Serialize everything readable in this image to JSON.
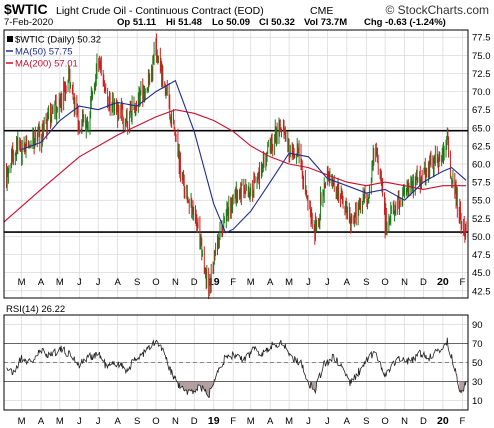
{
  "header": {
    "symbol": "$WTIC",
    "name": "Light Crude Oil - Continuous Contract (EOD)",
    "exchange": "CME",
    "brand": "© StockCharts.com",
    "date": "7-Feb-2020",
    "ohlc": [
      "Op 51.11",
      "Hi 51.48",
      "Lo 50.09",
      "Cl 50.32",
      "Vol 73.7M",
      "Chg -0.63 (-1.24%)"
    ]
  },
  "colors": {
    "price_up": "#1a7a1a",
    "price_down": "#cc1f1f",
    "ma50": "#1f2d8f",
    "ma200": "#c8102e",
    "rsi_line": "#222222",
    "rsi_fill": "#a08a8a",
    "grid": "#d8d8d8",
    "level_lines": "#000000"
  },
  "chart_data": [
    {
      "type": "line",
      "title": "$WTIC (Daily) 50.32",
      "legend_position": "top-left",
      "grid": true,
      "ylim": [
        41.5,
        78.5
      ],
      "y_axis_side": "right",
      "y_ticks": [
        42.5,
        45.0,
        47.5,
        50.0,
        52.5,
        55.0,
        57.5,
        60.0,
        62.5,
        65.0,
        67.5,
        70.0,
        72.5,
        75.0,
        77.5
      ],
      "y_tick_labels": [
        "42.5",
        "45.0",
        "47.5",
        "50.0",
        "52.5",
        "55.0",
        "57.5",
        "60.0",
        "62.5",
        "65.0",
        "67.5",
        "70.0",
        "72.5",
        "75.0",
        "77.5"
      ],
      "x_range": [
        "2018-02-01",
        "2020-02-10"
      ],
      "x_ticks": [
        "2018-03-01",
        "2018-04-01",
        "2018-05-01",
        "2018-06-01",
        "2018-07-01",
        "2018-08-01",
        "2018-09-01",
        "2018-10-01",
        "2018-11-01",
        "2018-12-01",
        "2019-01-01",
        "2019-02-01",
        "2019-03-01",
        "2019-04-01",
        "2019-05-01",
        "2019-06-01",
        "2019-07-01",
        "2019-08-01",
        "2019-09-01",
        "2019-10-01",
        "2019-11-01",
        "2019-12-01",
        "2020-01-01",
        "2020-02-01"
      ],
      "x_tick_labels": [
        "M",
        "A",
        "M",
        "J",
        "J",
        "A",
        "S",
        "O",
        "N",
        "D",
        "19",
        "F",
        "M",
        "A",
        "M",
        "J",
        "J",
        "A",
        "S",
        "O",
        "N",
        "D",
        "20",
        "F"
      ],
      "horizontal_lines": [
        64.6,
        50.6
      ],
      "series": [
        {
          "name": "$WTIC (Daily) 50.32",
          "style": "price-bars",
          "x": [
            "2018-02-05",
            "2018-02-19",
            "2018-03-05",
            "2018-03-19",
            "2018-04-02",
            "2018-04-16",
            "2018-05-01",
            "2018-05-15",
            "2018-06-01",
            "2018-06-15",
            "2018-07-02",
            "2018-07-16",
            "2018-08-01",
            "2018-08-15",
            "2018-09-03",
            "2018-09-17",
            "2018-10-01",
            "2018-10-15",
            "2018-11-01",
            "2018-11-15",
            "2018-12-03",
            "2018-12-17",
            "2018-12-24",
            "2019-01-02",
            "2019-01-15",
            "2019-02-01",
            "2019-02-15",
            "2019-03-01",
            "2019-03-15",
            "2019-04-01",
            "2019-04-22",
            "2019-05-01",
            "2019-05-15",
            "2019-06-03",
            "2019-06-12",
            "2019-07-01",
            "2019-07-15",
            "2019-08-01",
            "2019-08-07",
            "2019-09-03",
            "2019-09-16",
            "2019-10-01",
            "2019-10-15",
            "2019-11-01",
            "2019-11-15",
            "2019-12-02",
            "2019-12-16",
            "2020-01-02",
            "2020-01-08",
            "2020-01-15",
            "2020-02-01",
            "2020-02-07"
          ],
          "values": [
            59.0,
            62.0,
            61.5,
            63.5,
            64.0,
            67.0,
            68.5,
            71.5,
            65.5,
            66.0,
            74.0,
            68.5,
            67.5,
            65.5,
            69.0,
            70.5,
            75.5,
            71.0,
            63.5,
            56.5,
            52.5,
            46.5,
            43.0,
            47.5,
            52.0,
            55.0,
            56.5,
            56.5,
            58.5,
            62.5,
            66.0,
            62.0,
            62.0,
            53.0,
            51.5,
            58.5,
            56.5,
            54.0,
            51.5,
            55.5,
            62.5,
            52.5,
            53.5,
            56.5,
            57.5,
            58.5,
            60.5,
            61.5,
            63.5,
            58.0,
            51.5,
            50.3
          ]
        },
        {
          "name": "MA(50) 57.75",
          "x": [
            "2018-03-01",
            "2018-04-01",
            "2018-05-01",
            "2018-06-01",
            "2018-07-01",
            "2018-08-01",
            "2018-09-01",
            "2018-10-01",
            "2018-11-01",
            "2018-12-01",
            "2019-01-01",
            "2019-01-20",
            "2019-02-01",
            "2019-03-01",
            "2019-04-01",
            "2019-05-01",
            "2019-06-01",
            "2019-07-01",
            "2019-08-01",
            "2019-09-01",
            "2019-10-01",
            "2019-11-01",
            "2019-12-01",
            "2020-01-01",
            "2020-01-15",
            "2020-02-07"
          ],
          "values": [
            62.0,
            63.0,
            66.0,
            68.0,
            67.5,
            68.5,
            68.0,
            70.0,
            71.5,
            64.5,
            54.5,
            50.5,
            51.0,
            53.5,
            57.5,
            61.5,
            61.0,
            58.0,
            57.0,
            56.0,
            56.5,
            55.0,
            57.5,
            59.0,
            59.5,
            57.75
          ]
        },
        {
          "name": "MA(200) 57.01",
          "x": [
            "2018-02-01",
            "2018-04-01",
            "2018-06-01",
            "2018-08-01",
            "2018-10-01",
            "2018-11-01",
            "2018-12-01",
            "2019-01-01",
            "2019-02-01",
            "2019-03-01",
            "2019-04-01",
            "2019-05-01",
            "2019-06-01",
            "2019-07-01",
            "2019-08-01",
            "2019-09-01",
            "2019-10-01",
            "2019-11-01",
            "2019-12-01",
            "2020-01-01",
            "2020-02-07"
          ],
          "values": [
            52.0,
            56.5,
            61.0,
            64.0,
            66.5,
            67.5,
            67.0,
            66.0,
            64.5,
            62.5,
            61.0,
            60.0,
            59.5,
            58.5,
            57.5,
            57.0,
            57.5,
            57.0,
            56.5,
            57.0,
            57.01
          ]
        }
      ]
    },
    {
      "type": "line",
      "title": "RSI(14) 26.22",
      "grid": true,
      "ylim": [
        0,
        100
      ],
      "y_axis_side": "right",
      "y_ticks": [
        10,
        30,
        50,
        70,
        90
      ],
      "y_tick_labels": [
        "10",
        "30",
        "50",
        "70",
        "90"
      ],
      "reference_lines": [
        30,
        50,
        70
      ],
      "x_range": [
        "2018-02-01",
        "2020-02-10"
      ],
      "x_ticks": [
        "2018-03-01",
        "2018-04-01",
        "2018-05-01",
        "2018-06-01",
        "2018-07-01",
        "2018-08-01",
        "2018-09-01",
        "2018-10-01",
        "2018-11-01",
        "2018-12-01",
        "2019-01-01",
        "2019-02-01",
        "2019-03-01",
        "2019-04-01",
        "2019-05-01",
        "2019-06-01",
        "2019-07-01",
        "2019-08-01",
        "2019-09-01",
        "2019-10-01",
        "2019-11-01",
        "2019-12-01",
        "2020-01-01",
        "2020-02-01"
      ],
      "x_tick_labels": [
        "M",
        "A",
        "M",
        "J",
        "J",
        "A",
        "S",
        "O",
        "N",
        "D",
        "19",
        "F",
        "M",
        "A",
        "M",
        "J",
        "J",
        "A",
        "S",
        "O",
        "N",
        "D",
        "20",
        "F"
      ],
      "series": [
        {
          "name": "RSI(14) 26.22",
          "x": [
            "2018-02-05",
            "2018-02-15",
            "2018-03-01",
            "2018-03-15",
            "2018-04-01",
            "2018-04-15",
            "2018-05-01",
            "2018-05-15",
            "2018-06-01",
            "2018-06-15",
            "2018-07-01",
            "2018-07-15",
            "2018-08-01",
            "2018-08-15",
            "2018-09-01",
            "2018-09-15",
            "2018-10-01",
            "2018-10-10",
            "2018-10-25",
            "2018-11-10",
            "2018-11-25",
            "2018-12-10",
            "2018-12-24",
            "2019-01-05",
            "2019-01-20",
            "2019-02-05",
            "2019-02-20",
            "2019-03-05",
            "2019-03-20",
            "2019-04-05",
            "2019-04-20",
            "2019-05-05",
            "2019-05-20",
            "2019-06-01",
            "2019-06-12",
            "2019-06-25",
            "2019-07-10",
            "2019-07-25",
            "2019-08-07",
            "2019-08-20",
            "2019-09-05",
            "2019-09-16",
            "2019-09-30",
            "2019-10-10",
            "2019-10-25",
            "2019-11-10",
            "2019-11-25",
            "2019-12-10",
            "2019-12-25",
            "2020-01-08",
            "2020-01-18",
            "2020-01-28",
            "2020-02-07"
          ],
          "values": [
            45,
            38,
            55,
            50,
            62,
            58,
            64,
            60,
            48,
            55,
            60,
            45,
            50,
            42,
            55,
            62,
            72,
            65,
            40,
            22,
            18,
            25,
            15,
            40,
            55,
            58,
            52,
            65,
            60,
            68,
            72,
            55,
            50,
            28,
            22,
            48,
            55,
            45,
            28,
            40,
            55,
            60,
            38,
            45,
            55,
            50,
            60,
            55,
            62,
            72,
            48,
            20,
            26
          ]
        }
      ]
    }
  ]
}
